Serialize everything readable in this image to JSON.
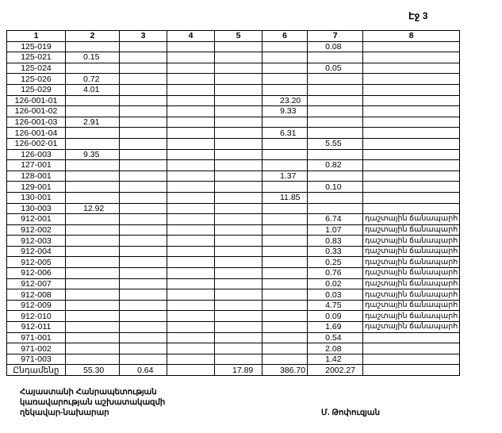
{
  "page_label": "Էջ 3",
  "table": {
    "headers": [
      "1",
      "2",
      "3",
      "4",
      "5",
      "6",
      "7",
      "8"
    ],
    "rows": [
      [
        "125-019",
        "",
        "",
        "",
        "",
        "",
        "0.08",
        ""
      ],
      [
        "125-021",
        "0.15",
        "",
        "",
        "",
        "",
        "",
        ""
      ],
      [
        "125-024",
        "",
        "",
        "",
        "",
        "",
        "0.05",
        ""
      ],
      [
        "125-026",
        "0.72",
        "",
        "",
        "",
        "",
        "",
        ""
      ],
      [
        "125-029",
        "4.01",
        "",
        "",
        "",
        "",
        "",
        ""
      ],
      [
        "126-001-01",
        "",
        "",
        "",
        "",
        "23.20",
        "",
        ""
      ],
      [
        "126-001-02",
        "",
        "",
        "",
        "",
        "9.33",
        "",
        ""
      ],
      [
        "126-001-03",
        "2.91",
        "",
        "",
        "",
        "",
        "",
        ""
      ],
      [
        "126-001-04",
        "",
        "",
        "",
        "",
        "6.31",
        "",
        ""
      ],
      [
        "126-002-01",
        "",
        "",
        "",
        "",
        "",
        "5.55",
        ""
      ],
      [
        "126-003",
        "9.35",
        "",
        "",
        "",
        "",
        "",
        ""
      ],
      [
        "127-001",
        "",
        "",
        "",
        "",
        "",
        "0.82",
        ""
      ],
      [
        "128-001",
        "",
        "",
        "",
        "",
        "1.37",
        "",
        ""
      ],
      [
        "129-001",
        "",
        "",
        "",
        "",
        "",
        "0.10",
        ""
      ],
      [
        "130-001",
        "",
        "",
        "",
        "",
        "11.85",
        "",
        ""
      ],
      [
        "130-003",
        "12.92",
        "",
        "",
        "",
        "",
        "",
        ""
      ],
      [
        "912-001",
        "",
        "",
        "",
        "",
        "",
        "6.74",
        "դաշտային ճանապարհ"
      ],
      [
        "912-002",
        "",
        "",
        "",
        "",
        "",
        "1.07",
        "դաշտային ճանապարհ"
      ],
      [
        "912-003",
        "",
        "",
        "",
        "",
        "",
        "0.83",
        "դաշտային ճանապարհ"
      ],
      [
        "912-004",
        "",
        "",
        "",
        "",
        "",
        "0.33",
        "դաշտային ճանապարհ"
      ],
      [
        "912-005",
        "",
        "",
        "",
        "",
        "",
        "0.25",
        "դաշտային ճանապարհ"
      ],
      [
        "912-006",
        "",
        "",
        "",
        "",
        "",
        "0.76",
        "դաշտային ճանապարհ"
      ],
      [
        "912-007",
        "",
        "",
        "",
        "",
        "",
        "0.02",
        "դաշտային ճանապարհ"
      ],
      [
        "912-008",
        "",
        "",
        "",
        "",
        "",
        "0.03",
        "դաշտային ճանապարհ"
      ],
      [
        "912-009",
        "",
        "",
        "",
        "",
        "",
        "4.75",
        "դաշտային ճանապարհ"
      ],
      [
        "912-010",
        "",
        "",
        "",
        "",
        "",
        "0.09",
        "դաշտային ճանապարհ"
      ],
      [
        "912-011",
        "",
        "",
        "",
        "",
        "",
        "1.69",
        "դաշտային ճանապարհ"
      ],
      [
        "971-001",
        "",
        "",
        "",
        "",
        "",
        "0.54",
        ""
      ],
      [
        "971-002",
        "",
        "",
        "",
        "",
        "",
        "2.08",
        ""
      ],
      [
        "971-003",
        "",
        "",
        "",
        "",
        "",
        "1.42",
        ""
      ]
    ],
    "total": [
      "Ընդամենը",
      "55.30",
      "0.64",
      "",
      "17.89",
      "386.70",
      "2002.27",
      ""
    ]
  },
  "footer": {
    "line1": "Հայաստանի Հանրապետության",
    "line2": "կառավարության աշխատակազմի",
    "line3": "ղեկավար-նախարար",
    "signer": "Մ. Թոփուզյան"
  }
}
